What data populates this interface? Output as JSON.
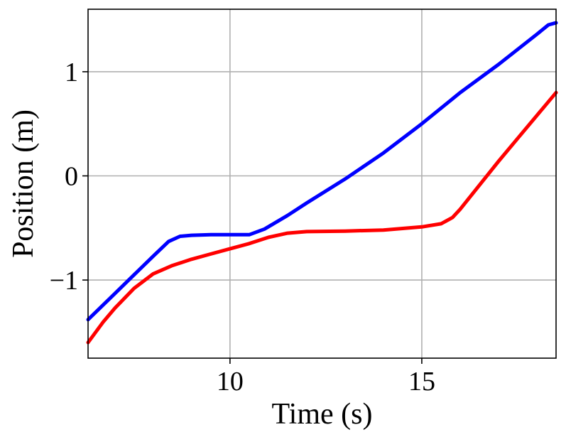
{
  "chart_data": {
    "type": "line",
    "title": "",
    "xlabel": "Time (s)",
    "ylabel": "Position (m)",
    "xlim": [
      6.3,
      18.5
    ],
    "ylim": [
      -1.75,
      1.6
    ],
    "xticks": [
      10,
      15
    ],
    "xtick_labels": [
      "10",
      "15"
    ],
    "yticks": [
      -1,
      0,
      1
    ],
    "ytick_labels": [
      "−1",
      "0",
      "1"
    ],
    "grid": true,
    "legend": "none",
    "series": [
      {
        "color": "#0000ff",
        "x": [
          6.3,
          7.0,
          7.5,
          8.0,
          8.4,
          8.7,
          9.0,
          9.5,
          10.0,
          10.5,
          10.9,
          11.5,
          12.0,
          13.0,
          14.0,
          15.0,
          16.0,
          17.0,
          18.0,
          18.3,
          18.5
        ],
        "y": [
          -1.38,
          -1.13,
          -0.95,
          -0.77,
          -0.63,
          -0.58,
          -0.57,
          -0.565,
          -0.565,
          -0.565,
          -0.51,
          -0.38,
          -0.26,
          -0.03,
          0.22,
          0.5,
          0.8,
          1.07,
          1.36,
          1.45,
          1.47
        ]
      },
      {
        "color": "#ff0000",
        "x": [
          6.3,
          6.7,
          7.0,
          7.5,
          8.0,
          8.5,
          9.0,
          9.5,
          10.0,
          10.5,
          11.0,
          11.5,
          12.0,
          13.0,
          14.0,
          15.0,
          15.5,
          15.8,
          16.0,
          16.5,
          17.0,
          17.5,
          18.0,
          18.5
        ],
        "y": [
          -1.6,
          -1.4,
          -1.27,
          -1.08,
          -0.94,
          -0.86,
          -0.8,
          -0.75,
          -0.7,
          -0.65,
          -0.59,
          -0.55,
          -0.535,
          -0.53,
          -0.52,
          -0.49,
          -0.46,
          -0.4,
          -0.32,
          -0.09,
          0.14,
          0.36,
          0.58,
          0.8
        ]
      }
    ]
  }
}
